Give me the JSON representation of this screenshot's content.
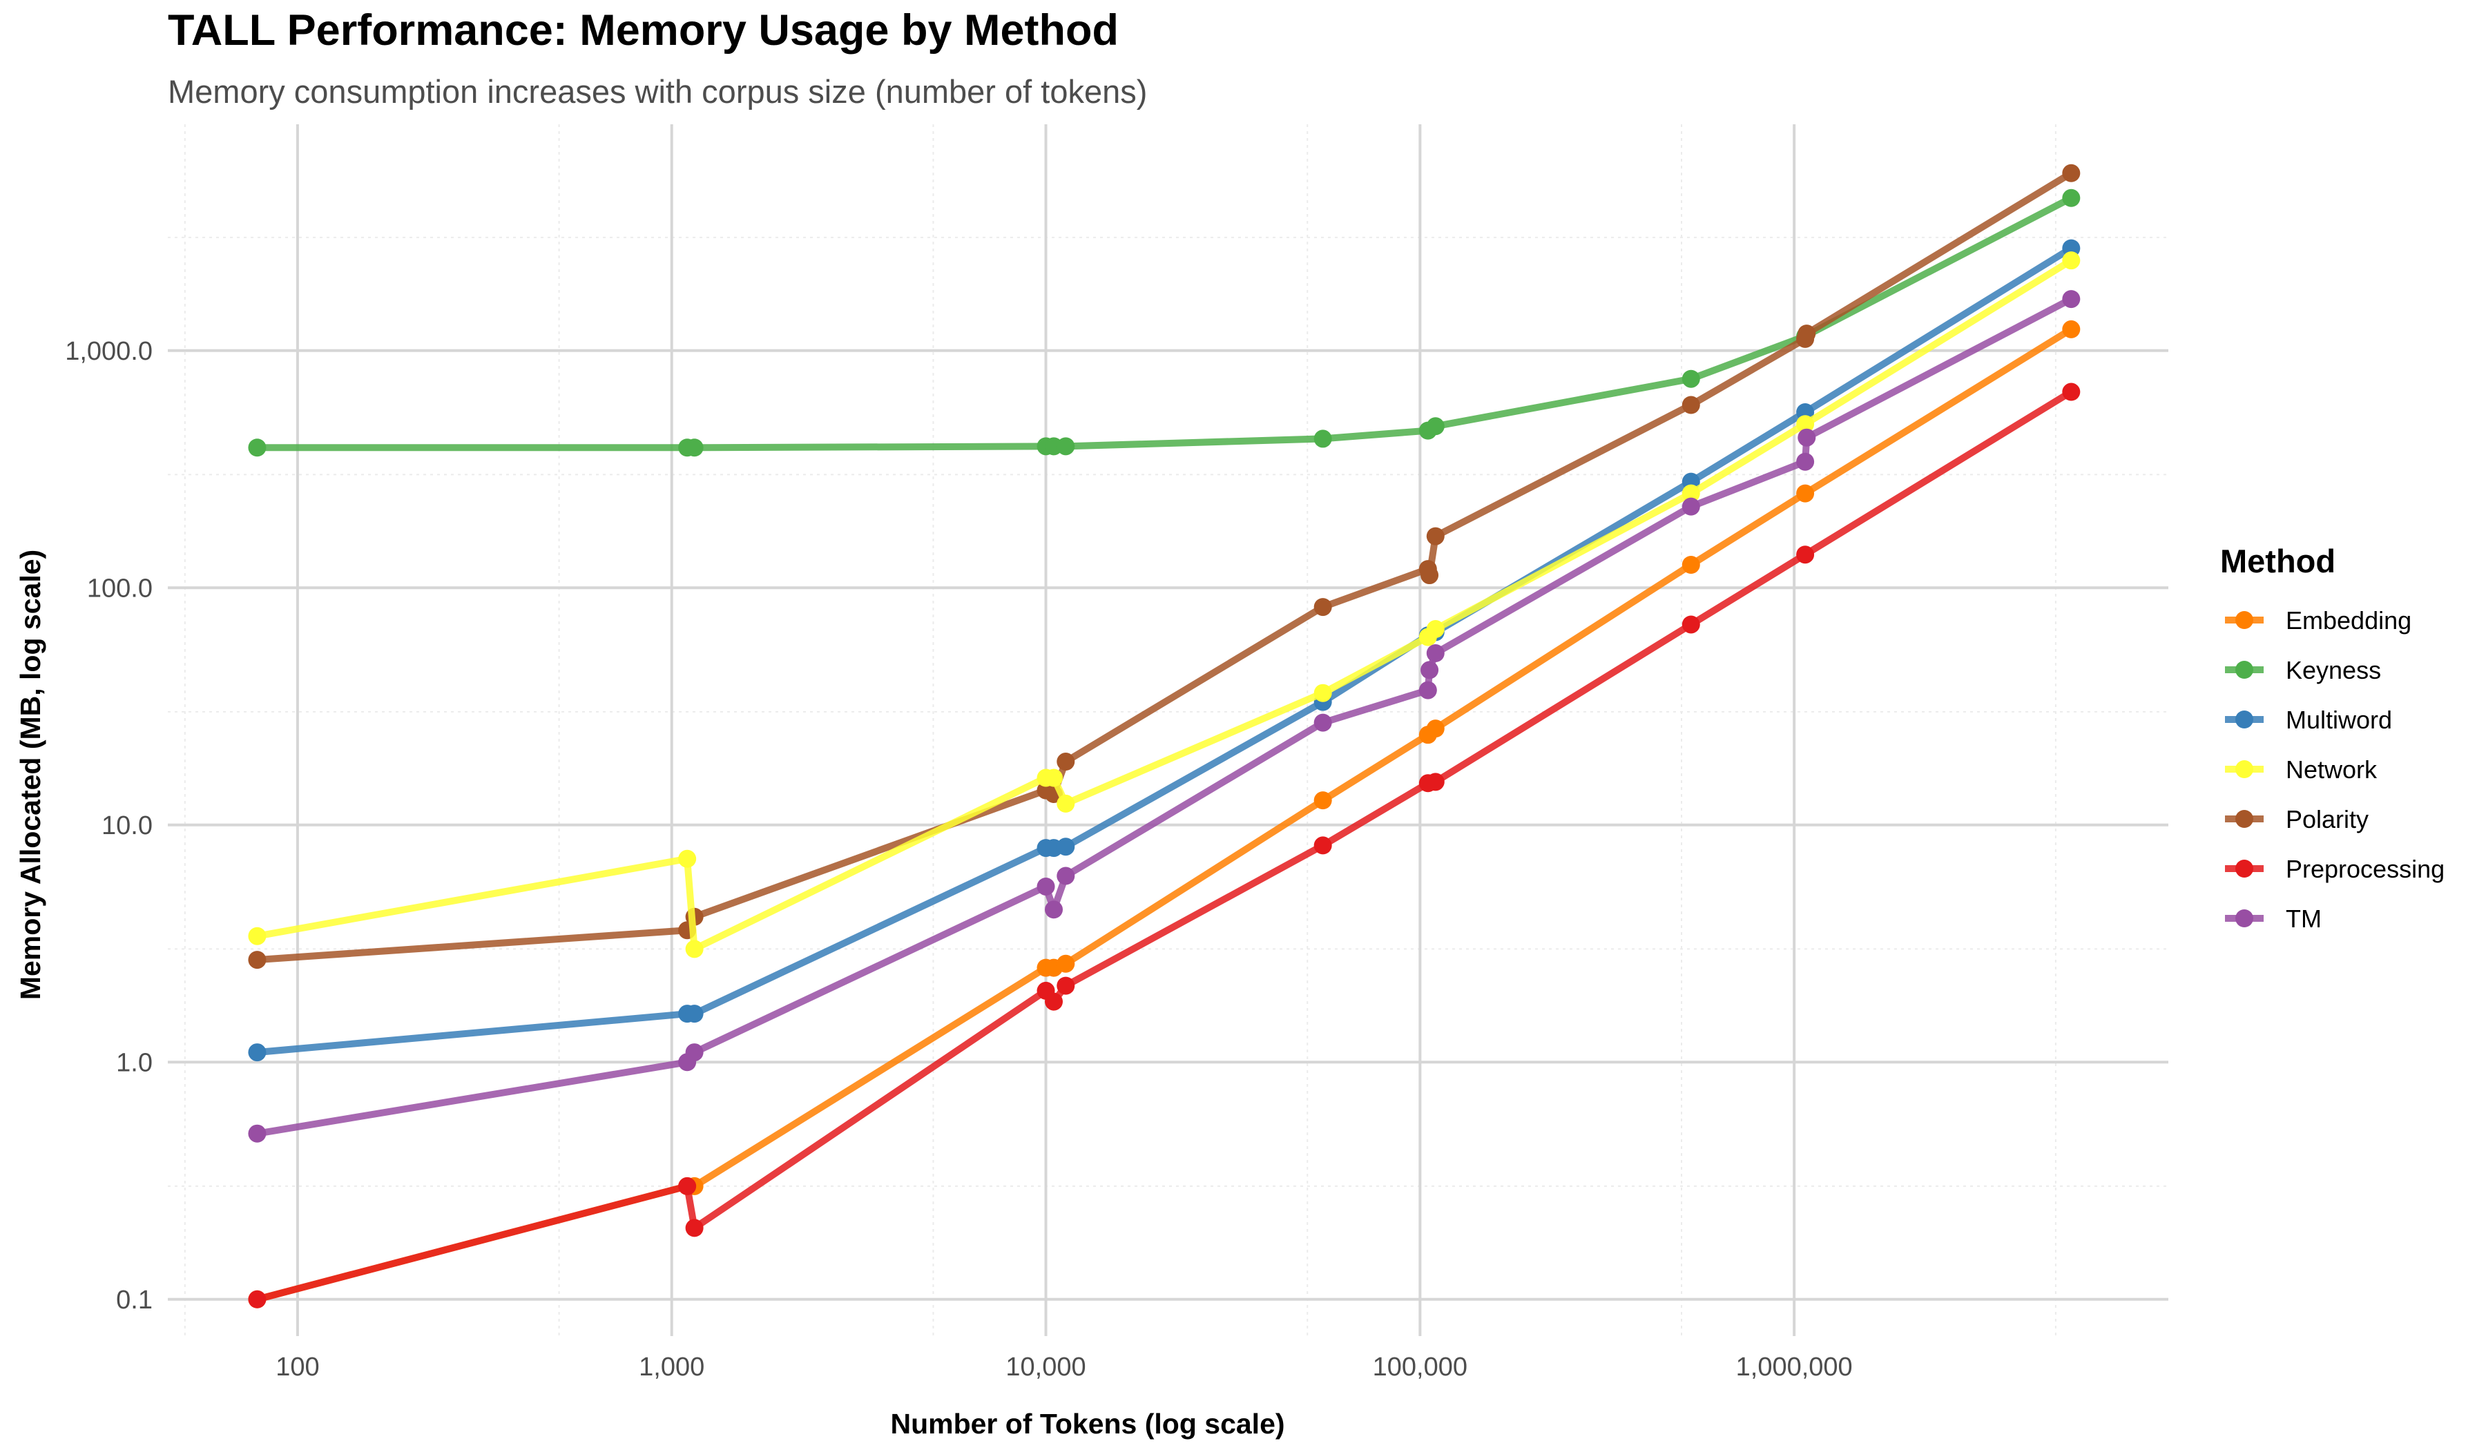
{
  "chart_data": {
    "type": "line",
    "title": "TALL Performance: Memory Usage by Method",
    "subtitle": "Memory consumption increases with corpus size (number of tokens)",
    "xlabel": "Number of Tokens (log scale)",
    "ylabel": "Memory Allocated (MB, log scale)",
    "x_scale": "log10",
    "y_scale": "log10",
    "xlim": [
      45,
      10000000
    ],
    "ylim": [
      0.07,
      9000
    ],
    "x_ticks": [
      {
        "value": 100,
        "label": "100"
      },
      {
        "value": 1000,
        "label": "1,000"
      },
      {
        "value": 10000,
        "label": "10,000"
      },
      {
        "value": 100000,
        "label": "100,000"
      },
      {
        "value": 1000000,
        "label": "1,000,000"
      }
    ],
    "y_ticks": [
      {
        "value": 0.1,
        "label": "0.1"
      },
      {
        "value": 1,
        "label": "1.0"
      },
      {
        "value": 10,
        "label": "10.0"
      },
      {
        "value": 100,
        "label": "100.0"
      },
      {
        "value": 1000,
        "label": "1,000.0"
      }
    ],
    "grid": true,
    "legend": {
      "title": "Method",
      "position": "right"
    },
    "series": [
      {
        "name": "Keyness",
        "color": "#4DAF4A",
        "points": [
          [
            78,
            390
          ],
          [
            1100,
            390
          ],
          [
            1150,
            390
          ],
          [
            10000,
            395
          ],
          [
            10500,
            395
          ],
          [
            11300,
            395
          ],
          [
            55000,
            425
          ],
          [
            105000,
            460
          ],
          [
            110000,
            480
          ],
          [
            530000,
            760
          ],
          [
            1070000,
            1150
          ],
          [
            5500000,
            4400
          ]
        ]
      },
      {
        "name": "Polarity",
        "color": "#A65628",
        "points": [
          [
            78,
            2.7
          ],
          [
            1100,
            3.6
          ],
          [
            1150,
            4.1
          ],
          [
            10000,
            14
          ],
          [
            10500,
            13.5
          ],
          [
            11300,
            18.5
          ],
          [
            55000,
            83
          ],
          [
            105000,
            120
          ],
          [
            106000,
            113
          ],
          [
            110000,
            165
          ],
          [
            530000,
            590
          ],
          [
            1070000,
            1120
          ],
          [
            1080000,
            1180
          ],
          [
            5500000,
            5600
          ]
        ]
      },
      {
        "name": "Multiword",
        "color": "#377EB8",
        "points": [
          [
            78,
            1.1
          ],
          [
            1100,
            1.6
          ],
          [
            1150,
            1.6
          ],
          [
            10000,
            8
          ],
          [
            10500,
            8
          ],
          [
            11300,
            8.1
          ],
          [
            55000,
            33
          ],
          [
            105000,
            63
          ],
          [
            110000,
            65
          ],
          [
            530000,
            280
          ],
          [
            1070000,
            550
          ],
          [
            5500000,
            2700
          ]
        ]
      },
      {
        "name": "Network",
        "color": "#FFFF33",
        "points": [
          [
            78,
            3.4
          ],
          [
            1100,
            7.2
          ],
          [
            1150,
            3
          ],
          [
            10000,
            15.8
          ],
          [
            10500,
            15.8
          ],
          [
            11300,
            12.3
          ],
          [
            55000,
            36
          ],
          [
            105000,
            62
          ],
          [
            110000,
            67
          ],
          [
            530000,
            250
          ],
          [
            1070000,
            490
          ],
          [
            5500000,
            2400
          ]
        ]
      },
      {
        "name": "TM",
        "color": "#984EA3",
        "points": [
          [
            78,
            0.5
          ],
          [
            1100,
            1
          ],
          [
            1150,
            1.1
          ],
          [
            10000,
            5.5
          ],
          [
            10500,
            4.4
          ],
          [
            11300,
            6.1
          ],
          [
            55000,
            27
          ],
          [
            105000,
            37
          ],
          [
            106000,
            45
          ],
          [
            110000,
            53
          ],
          [
            530000,
            220
          ],
          [
            1070000,
            340
          ],
          [
            1080000,
            430
          ],
          [
            5500000,
            1650
          ]
        ]
      },
      {
        "name": "Embedding",
        "color": "#FF7F00",
        "points": [
          [
            78,
            0.1
          ],
          [
            1100,
            0.3
          ],
          [
            1150,
            0.3
          ],
          [
            10000,
            2.5
          ],
          [
            10500,
            2.5
          ],
          [
            11300,
            2.6
          ],
          [
            55000,
            12.7
          ],
          [
            105000,
            24
          ],
          [
            110000,
            25.5
          ],
          [
            530000,
            125
          ],
          [
            1070000,
            250
          ],
          [
            5500000,
            1230
          ]
        ]
      },
      {
        "name": "Preprocessing",
        "color": "#E41A1C",
        "points": [
          [
            78,
            0.1
          ],
          [
            1100,
            0.3
          ],
          [
            1150,
            0.2
          ],
          [
            10000,
            2
          ],
          [
            10500,
            1.8
          ],
          [
            11300,
            2.1
          ],
          [
            55000,
            8.2
          ],
          [
            105000,
            15
          ],
          [
            110000,
            15.2
          ],
          [
            530000,
            70
          ],
          [
            1070000,
            138
          ],
          [
            5500000,
            670
          ]
        ]
      }
    ],
    "legend_order": [
      "Embedding",
      "Keyness",
      "Multiword",
      "Network",
      "Polarity",
      "Preprocessing",
      "TM"
    ]
  }
}
